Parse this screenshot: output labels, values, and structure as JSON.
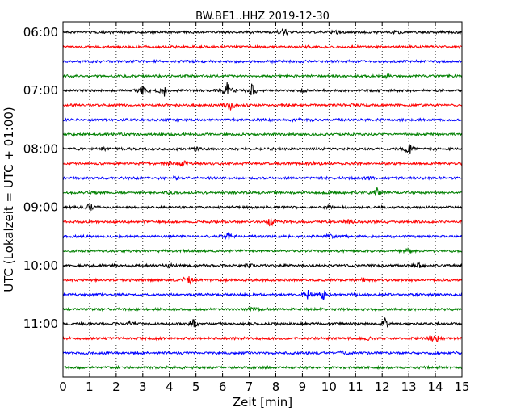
{
  "chart_data": {
    "type": "line",
    "title": "BW.BE1..HHZ 2019-12-30",
    "xlabel": "Zeit  [min]",
    "ylabel": "UTC (Lokalzeit = UTC + 01:00)",
    "xlim": [
      0,
      15
    ],
    "x_ticks": [
      "0",
      "1",
      "2",
      "3",
      "4",
      "5",
      "6",
      "7",
      "8",
      "9",
      "10",
      "11",
      "12",
      "13",
      "14",
      "15"
    ],
    "y_tick_labels": [
      "06:00",
      "07:00",
      "08:00",
      "09:00",
      "10:00",
      "11:00"
    ],
    "grid": true,
    "color_cycle": [
      "#000000",
      "#ff0000",
      "#0000ff",
      "#008000"
    ],
    "series": [
      {
        "start": "06:00",
        "events": [
          {
            "x": 8.3,
            "amp": 5
          },
          {
            "x": 10.3,
            "amp": 2
          },
          {
            "x": 12.5,
            "amp": 2
          }
        ]
      },
      {
        "start": "06:15",
        "events": [
          {
            "x": 9.2,
            "amp": 1.5
          }
        ]
      },
      {
        "start": "06:30",
        "events": []
      },
      {
        "start": "06:45",
        "events": [
          {
            "x": 12.2,
            "amp": 2
          }
        ]
      },
      {
        "start": "07:00",
        "events": [
          {
            "x": 3.0,
            "amp": 6
          },
          {
            "x": 3.8,
            "amp": 7
          },
          {
            "x": 6.2,
            "amp": 12
          },
          {
            "x": 7.1,
            "amp": 8
          },
          {
            "x": 9.0,
            "amp": 2
          }
        ]
      },
      {
        "start": "07:15",
        "events": [
          {
            "x": 6.3,
            "amp": 8
          },
          {
            "x": 10.8,
            "amp": 2
          }
        ]
      },
      {
        "start": "07:30",
        "events": [
          {
            "x": 8.8,
            "amp": 1.5
          }
        ]
      },
      {
        "start": "07:45",
        "events": [
          {
            "x": 2.3,
            "amp": 1.5
          },
          {
            "x": 10.8,
            "amp": 1.5
          }
        ]
      },
      {
        "start": "08:00",
        "events": [
          {
            "x": 1.5,
            "amp": 2
          },
          {
            "x": 5.0,
            "amp": 2
          },
          {
            "x": 13.0,
            "amp": 8
          }
        ]
      },
      {
        "start": "08:15",
        "events": [
          {
            "x": 4.0,
            "amp": 3
          },
          {
            "x": 4.5,
            "amp": 4
          },
          {
            "x": 9.5,
            "amp": 2
          }
        ]
      },
      {
        "start": "08:30",
        "events": [
          {
            "x": 4.2,
            "amp": 1.5
          },
          {
            "x": 11.5,
            "amp": 1.5
          }
        ]
      },
      {
        "start": "08:45",
        "events": [
          {
            "x": 11.8,
            "amp": 6
          },
          {
            "x": 4.0,
            "amp": 1.5
          }
        ]
      },
      {
        "start": "09:00",
        "events": [
          {
            "x": 1.0,
            "amp": 5
          },
          {
            "x": 10.0,
            "amp": 1.5
          }
        ]
      },
      {
        "start": "09:15",
        "events": [
          {
            "x": 7.8,
            "amp": 6
          },
          {
            "x": 10.7,
            "amp": 2.5
          }
        ]
      },
      {
        "start": "09:30",
        "events": [
          {
            "x": 6.2,
            "amp": 5
          },
          {
            "x": 10.0,
            "amp": 2.5
          }
        ]
      },
      {
        "start": "09:45",
        "events": [
          {
            "x": 13.0,
            "amp": 2
          }
        ]
      },
      {
        "start": "10:00",
        "events": [
          {
            "x": 4.0,
            "amp": 2
          },
          {
            "x": 7.0,
            "amp": 1.5
          },
          {
            "x": 13.3,
            "amp": 5
          }
        ]
      },
      {
        "start": "10:15",
        "events": [
          {
            "x": 4.7,
            "amp": 8
          },
          {
            "x": 11.3,
            "amp": 2
          }
        ]
      },
      {
        "start": "10:30",
        "events": [
          {
            "x": 9.2,
            "amp": 6
          },
          {
            "x": 9.8,
            "amp": 6
          },
          {
            "x": 11.0,
            "amp": 1.5
          }
        ]
      },
      {
        "start": "10:45",
        "events": [
          {
            "x": 7.1,
            "amp": 2
          }
        ]
      },
      {
        "start": "11:00",
        "events": [
          {
            "x": 4.9,
            "amp": 5
          },
          {
            "x": 12.1,
            "amp": 6
          },
          {
            "x": 2.5,
            "amp": 2
          }
        ]
      },
      {
        "start": "11:15",
        "events": [
          {
            "x": 14.0,
            "amp": 6
          },
          {
            "x": 11.5,
            "amp": 1.5
          }
        ]
      },
      {
        "start": "11:30",
        "events": [
          {
            "x": 10.5,
            "amp": 2
          }
        ]
      },
      {
        "start": "11:45",
        "events": []
      }
    ]
  }
}
